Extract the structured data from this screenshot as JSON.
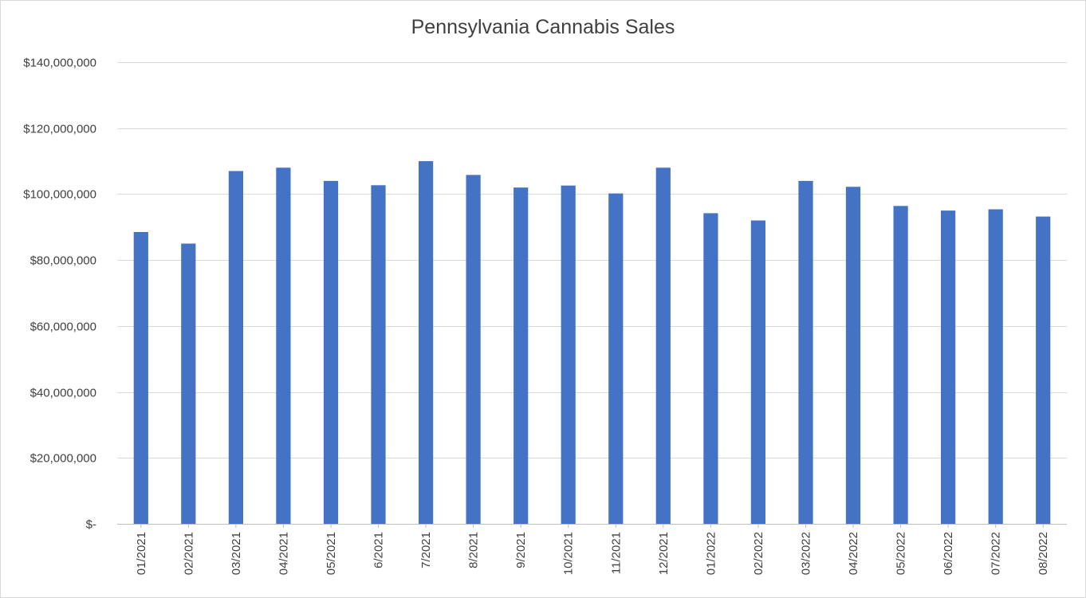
{
  "chart_data": {
    "type": "bar",
    "title": "Pennsylvania Cannabis Sales",
    "xlabel": "",
    "ylabel": "",
    "ylim": [
      0,
      140000000
    ],
    "yticks": [
      0,
      20000000,
      40000000,
      60000000,
      80000000,
      100000000,
      120000000,
      140000000
    ],
    "ytick_labels": [
      "$-",
      "$20,000,000",
      "$40,000,000",
      "$60,000,000",
      "$80,000,000",
      "$100,000,000",
      "$120,000,000",
      "$140,000,000"
    ],
    "grid": true,
    "legend": "none",
    "bar_color": "#4472c4",
    "categories": [
      "01/2021",
      "02/2021",
      "03/2021",
      "04/2021",
      "05/2021",
      "6/2021",
      "7/2021",
      "8/2021",
      "9/2021",
      "10/2021",
      "11/2021",
      "12/2021",
      "01/2022",
      "02/2022",
      "03/2022",
      "04/2022",
      "05/2022",
      "06/2022",
      "07/2022",
      "08/2022"
    ],
    "values": [
      88500000,
      85000000,
      107000000,
      108000000,
      104000000,
      102700000,
      110000000,
      105800000,
      102000000,
      102600000,
      100200000,
      108000000,
      94200000,
      92000000,
      104000000,
      102200000,
      96400000,
      95000000,
      95400000,
      93200000
    ]
  }
}
